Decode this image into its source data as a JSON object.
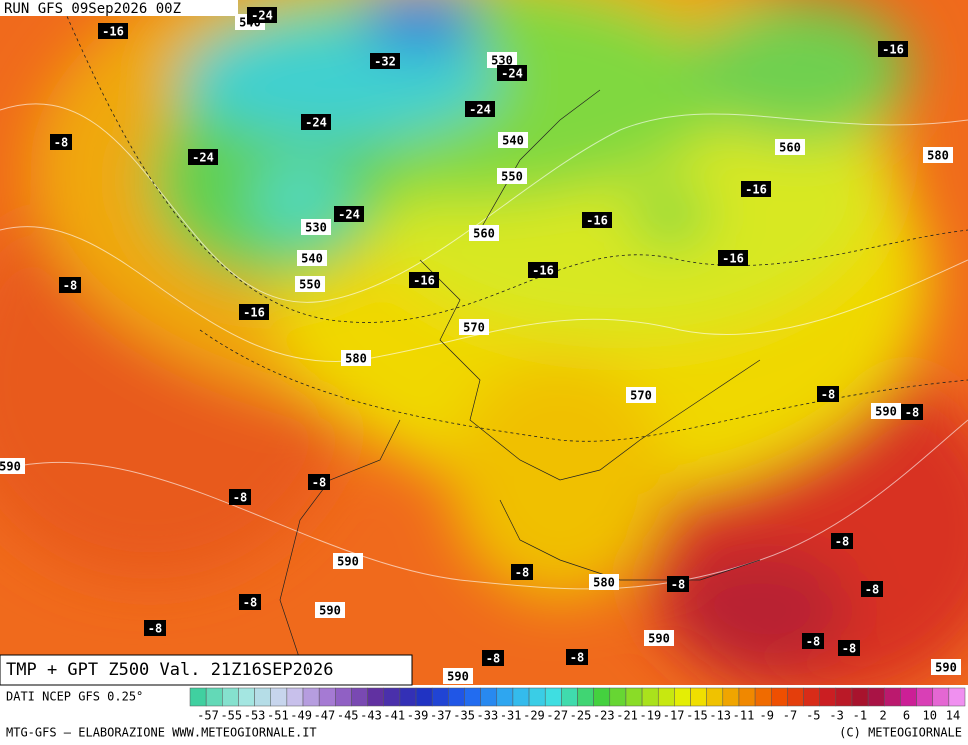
{
  "header": {
    "run": "RUN GFS 09Sep2026 00Z"
  },
  "map": {
    "title": "TMP + GPT Z500 Val. 21Z16SEP2026",
    "contour_labels": [
      "540",
      "-24",
      "-16",
      "-32",
      "530",
      "-24",
      "-16",
      "-24",
      "-24",
      "-8",
      "540",
      "560",
      "580",
      "-24",
      "550",
      "-16",
      "-24",
      "530",
      "-16",
      "560",
      "540",
      "-16",
      "-16",
      "-8",
      "550",
      "-16",
      "-16",
      "570",
      "580",
      "-8",
      "570",
      "590",
      "-8",
      "590",
      "-8",
      "-8",
      "-8",
      "590",
      "-8",
      "580",
      "-8",
      "-8",
      "-8",
      "590",
      "-8",
      "590",
      "-8",
      "-8",
      "-8",
      "-8",
      "590",
      "590"
    ]
  },
  "colorbar": {
    "source": "DATI NCEP GFS 0.25°",
    "ticks": [
      "-57",
      "-55",
      "-53",
      "-51",
      "-49",
      "-47",
      "-45",
      "-43",
      "-41",
      "-39",
      "-37",
      "-35",
      "-33",
      "-31",
      "-29",
      "-27",
      "-25",
      "-23",
      "-21",
      "-19",
      "-17",
      "-15",
      "-13",
      "-11",
      "-9",
      "-7",
      "-5",
      "-3",
      "-1",
      "2",
      "6",
      "10",
      "14"
    ]
  },
  "footer": {
    "left": "MTG-GFS — ELABORAZIONE WWW.METEOGIORNALE.IT",
    "right": "(C) METEOGIORNALE"
  }
}
